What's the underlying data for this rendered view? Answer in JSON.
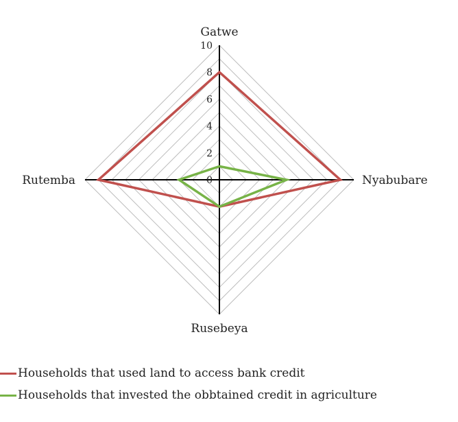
{
  "chart_data": {
    "type": "radar",
    "categories": [
      "Gatwe",
      "Nyabubare",
      "Rusebeya",
      "Rutemba"
    ],
    "rlim": [
      0,
      10
    ],
    "rticks": [
      0,
      2,
      4,
      6,
      8,
      10
    ],
    "grid": true,
    "legend_position": "bottom-left",
    "series": [
      {
        "name": "Households that used land to access bank credit",
        "color": "#c0504d",
        "values": [
          8,
          9,
          2,
          9
        ]
      },
      {
        "name": "Households that invested the obbtained credit in agriculture",
        "color": "#77b347",
        "values": [
          1,
          5,
          2,
          3
        ]
      }
    ]
  }
}
